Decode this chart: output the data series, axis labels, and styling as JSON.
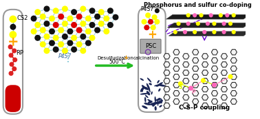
{
  "title_right": "Phosphorus and sulfur co-doping",
  "label_bottom_right": "C-S-P coupling",
  "label_cs2": "CS2",
  "label_rp": "RP",
  "label_p4s7_left": "P4S7",
  "label_desufl": "Desulfurization",
  "label_calc": "calcination",
  "label_temp": "500°C",
  "label_p4s7_right": "P4S7",
  "label_psc": "PSC",
  "plus_color": "#FFA500",
  "arrow_color": "#22BB22",
  "dashed_arrow_color": "#6600CC",
  "bg_color": "#FFFFFF",
  "red_fill": "#CC0000",
  "yellow_dot": "#FFFF00",
  "black_dot": "#111111",
  "red_dot": "#DD0000",
  "cyan_line": "#66BBCC",
  "magenta_dot": "#FF66BB"
}
